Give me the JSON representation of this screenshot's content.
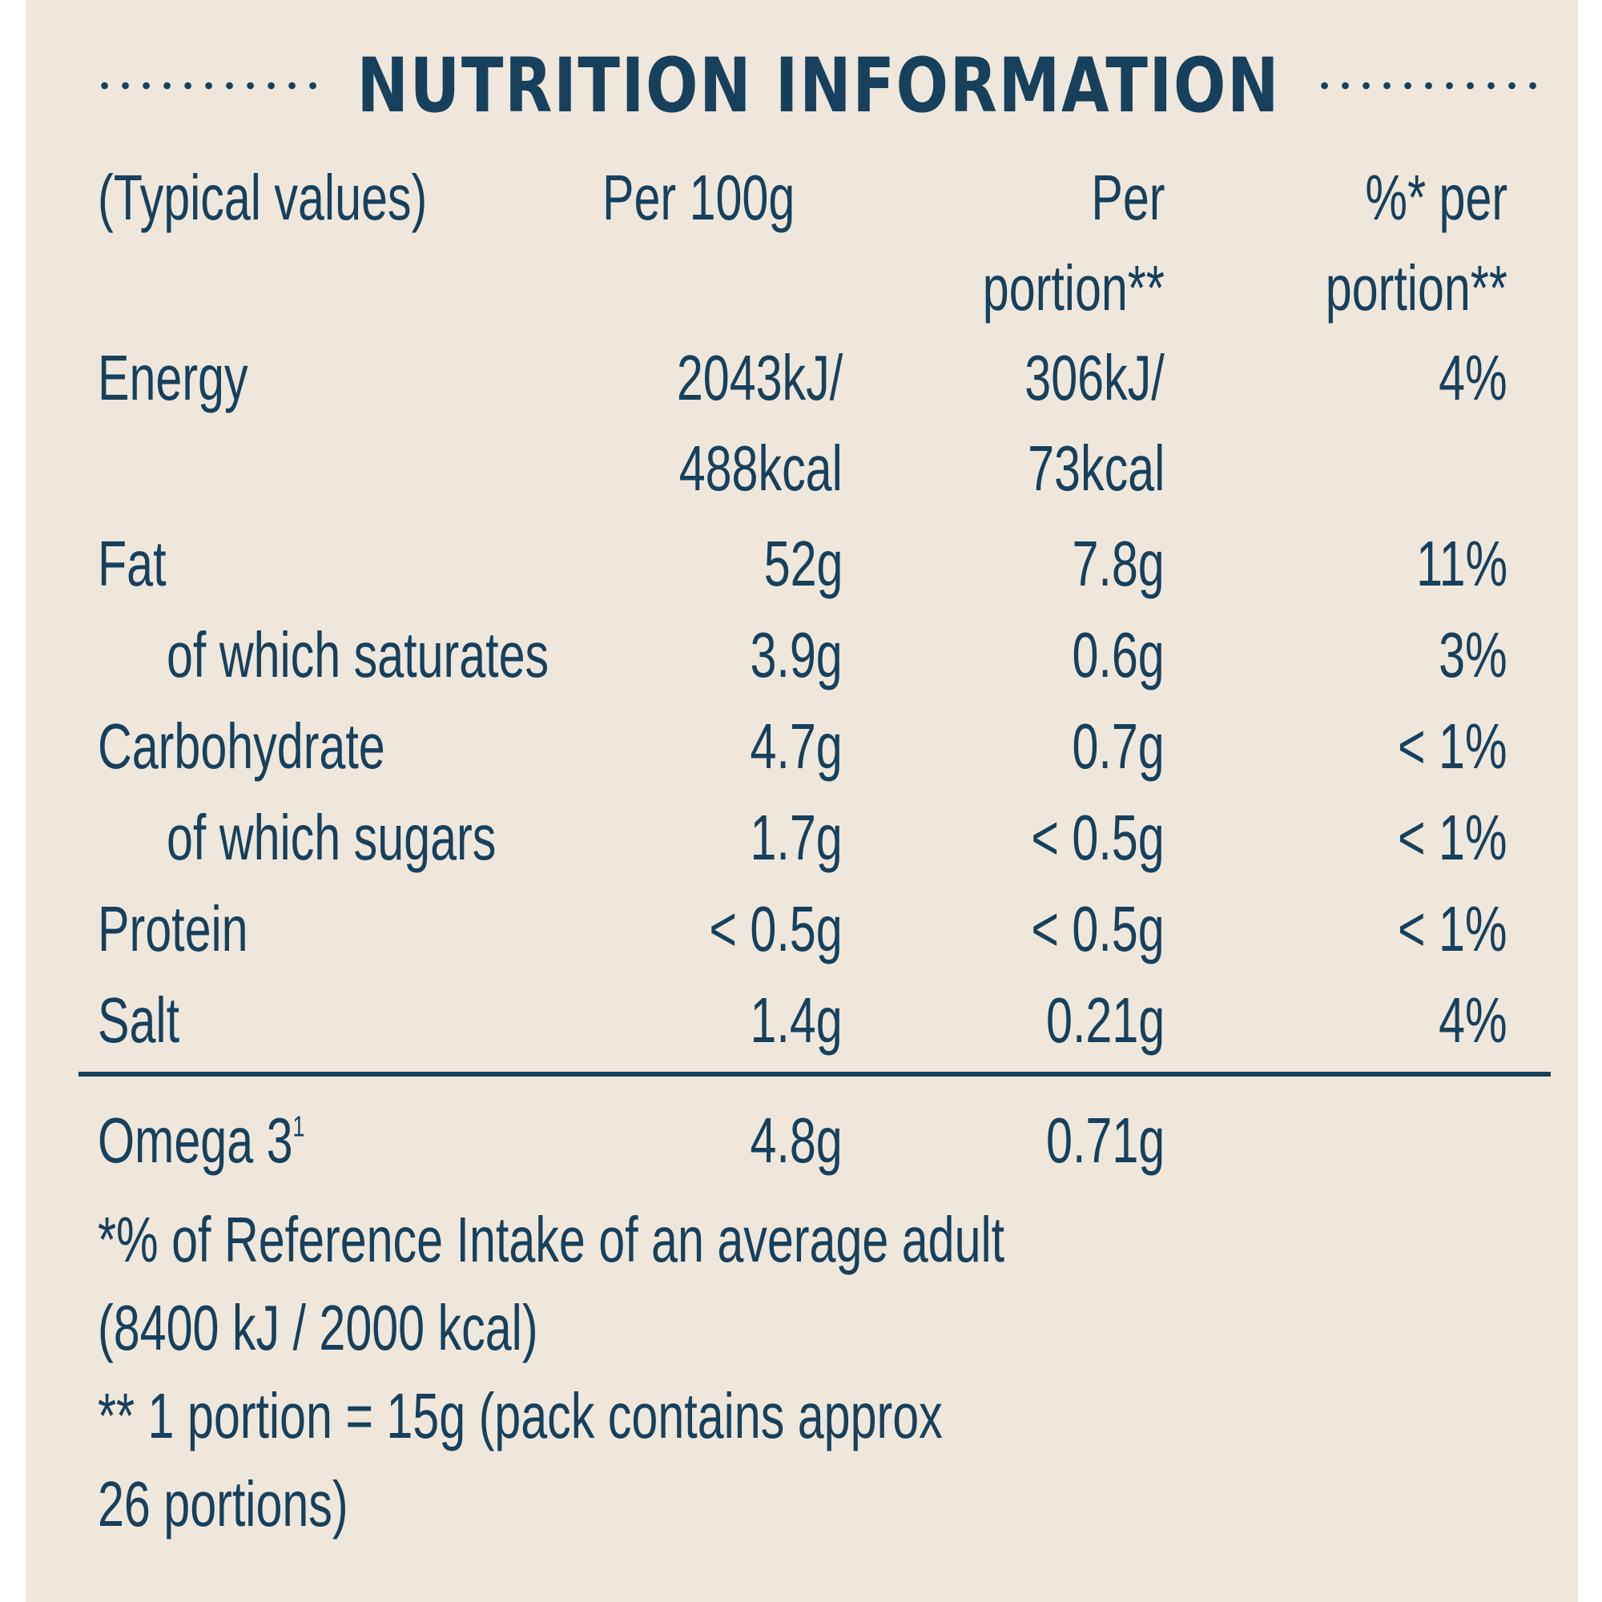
{
  "title": "NUTRITION INFORMATION",
  "header": {
    "label": "(Typical values)",
    "col_per100": "Per 100g",
    "col_portion_line1": "Per",
    "col_portion_line2": "portion**",
    "col_ri_line1": "%* per",
    "col_ri_line2": "portion**"
  },
  "rows": [
    {
      "name": "Energy",
      "per100_line1": "2043kJ/",
      "per100_line2": "488kcal",
      "portion_line1": "306kJ/",
      "portion_line2": "73kcal",
      "ri": "4%"
    },
    {
      "name": "Fat",
      "per100": "52g",
      "portion": "7.8g",
      "ri": "11%"
    },
    {
      "name": "of which saturates",
      "per100": "3.9g",
      "portion": "0.6g",
      "ri": "3%"
    },
    {
      "name": "Carbohydrate",
      "per100": "4.7g",
      "portion": "0.7g",
      "ri": "< 1%"
    },
    {
      "name": "of which sugars",
      "per100": "1.7g",
      "portion": "< 0.5g",
      "ri": "< 1%"
    },
    {
      "name": "Protein",
      "per100": "< 0.5g",
      "portion": "< 0.5g",
      "ri": "< 1%"
    },
    {
      "name": "Salt",
      "per100": "1.4g",
      "portion": "0.21g",
      "ri": "4%"
    }
  ],
  "omega": {
    "name": "Omega 3",
    "footnote_mark": "1",
    "per100": "4.8g",
    "portion": "0.71g"
  },
  "footnotes": {
    "ri_line1": "*% of Reference Intake of an average adult",
    "ri_line2": "(8400 kJ / 2000 kcal)",
    "portion_line1": "** 1 portion = 15g (pack contains approx",
    "portion_line2": "26 portions)"
  },
  "colors": {
    "text": "#17405c",
    "background": "#efe7dc"
  }
}
